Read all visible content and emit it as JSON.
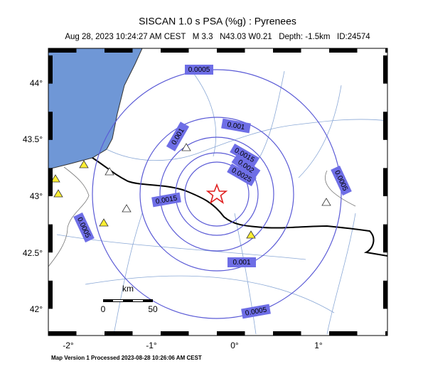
{
  "header": {
    "title": "SISCAN 1.0 s PSA (%g) : Pyrenees",
    "subtitle": "Aug 28, 2023 10:24:27 AM CEST   M 3.3   N43.03 W0.21   Depth: -1.5km   ID:24574"
  },
  "lat_labels": [
    "44°",
    "43.5°",
    "43°",
    "42.5°",
    "42°"
  ],
  "lon_labels": [
    "-2°",
    "-1°",
    "0°",
    "1°"
  ],
  "contour_labels": [
    "0.0005",
    "0.001",
    "0.001",
    "0.0015",
    "0.002",
    "0.0025",
    "0.0015",
    "0.0005",
    "0.0005",
    "0.001",
    "0.0005"
  ],
  "scale": {
    "unit": "km",
    "start": "0",
    "end": "50"
  },
  "footer": "Map Version 1 Processed 2023-08-28 10:26:06 AM CEST"
}
